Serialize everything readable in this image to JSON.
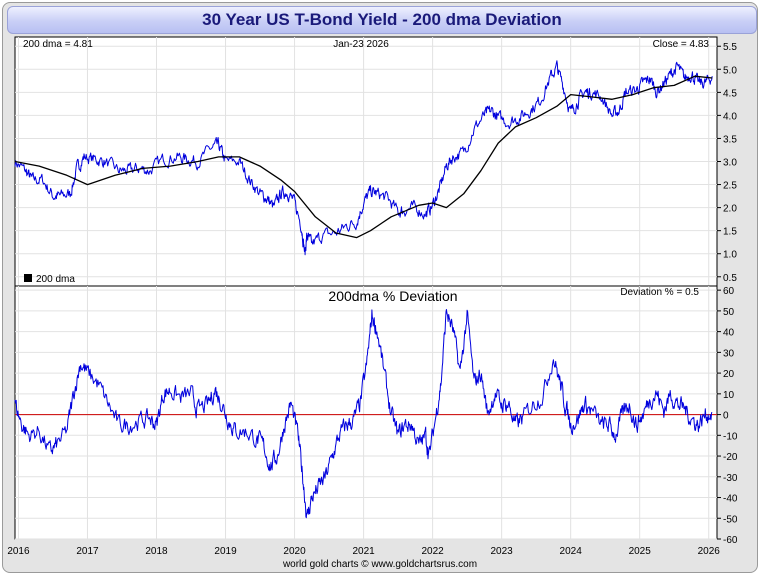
{
  "chart_data": [
    {
      "type": "line",
      "title": "30 Year US T-Bond Yield - 200 dma Deviation",
      "panel": "top",
      "annotations": {
        "left": "200 dma =   4.81",
        "center": "Jan-23  2026",
        "right": "Close = 4.83"
      },
      "legend": "200 dma",
      "ylim": [
        0.3,
        5.7
      ],
      "yticks": [
        "5.5",
        "5.0",
        "4.5",
        "4.0",
        "3.5",
        "3.0",
        "2.5",
        "2.0",
        "1.5",
        "1.0",
        "0.5"
      ],
      "xlim": [
        2015.95,
        2026.12
      ],
      "series": [
        {
          "name": "30 Year US T-Bond Yield",
          "color": "#0000dd",
          "x": [
            2015.95,
            2016.1,
            2016.2,
            2016.35,
            2016.5,
            2016.6,
            2016.75,
            2016.85,
            2016.95,
            2017.1,
            2017.25,
            2017.45,
            2017.6,
            2017.75,
            2017.9,
            2018.1,
            2018.3,
            2018.45,
            2018.6,
            2018.8,
            2018.9,
            2019.0,
            2019.2,
            2019.35,
            2019.5,
            2019.6,
            2019.7,
            2019.8,
            2019.9,
            2020.0,
            2020.1,
            2020.15,
            2020.18,
            2020.25,
            2020.4,
            2020.6,
            2020.75,
            2020.9,
            2021.0,
            2021.1,
            2021.2,
            2021.35,
            2021.5,
            2021.6,
            2021.75,
            2021.9,
            2022.0,
            2022.1,
            2022.2,
            2022.3,
            2022.45,
            2022.6,
            2022.75,
            2022.85,
            2022.95,
            2023.1,
            2023.25,
            2023.4,
            2023.55,
            2023.7,
            2023.8,
            2023.9,
            2024.0,
            2024.1,
            2024.2,
            2024.3,
            2024.45,
            2024.6,
            2024.7,
            2024.8,
            2024.95,
            2025.05,
            2025.15,
            2025.25,
            2025.35,
            2025.45,
            2025.55,
            2025.65,
            2025.75,
            2025.85,
            2025.95,
            2026.05
          ],
          "y": [
            3.0,
            2.8,
            2.6,
            2.6,
            2.25,
            2.25,
            2.3,
            2.85,
            3.1,
            3.05,
            3.0,
            2.8,
            2.8,
            2.85,
            2.8,
            3.05,
            3.1,
            3.05,
            3.0,
            3.3,
            3.35,
            3.0,
            3.0,
            2.6,
            2.3,
            2.2,
            2.0,
            2.3,
            2.35,
            2.1,
            1.6,
            1.0,
            1.4,
            1.2,
            1.4,
            1.45,
            1.6,
            1.7,
            2.1,
            2.35,
            2.3,
            2.2,
            1.9,
            1.95,
            2.0,
            1.85,
            2.05,
            2.4,
            2.9,
            3.1,
            3.2,
            3.7,
            4.0,
            4.1,
            3.95,
            3.85,
            3.95,
            4.1,
            4.3,
            4.8,
            5.05,
            4.6,
            4.05,
            4.3,
            4.5,
            4.5,
            4.4,
            4.0,
            4.1,
            4.5,
            4.55,
            4.7,
            4.8,
            4.5,
            4.7,
            4.9,
            5.05,
            4.8,
            4.9,
            4.7,
            4.7,
            4.85
          ]
        },
        {
          "name": "200 dma",
          "color": "#000000",
          "x": [
            2015.95,
            2016.3,
            2016.7,
            2017.0,
            2017.4,
            2017.8,
            2018.2,
            2018.6,
            2018.9,
            2019.2,
            2019.5,
            2019.8,
            2020.0,
            2020.3,
            2020.6,
            2020.9,
            2021.1,
            2021.4,
            2021.8,
            2022.0,
            2022.2,
            2022.45,
            2022.7,
            2022.95,
            2023.2,
            2023.5,
            2023.8,
            2024.0,
            2024.3,
            2024.6,
            2024.9,
            2025.2,
            2025.5,
            2025.8,
            2026.05
          ],
          "y": [
            3.0,
            2.9,
            2.7,
            2.5,
            2.7,
            2.85,
            2.9,
            3.0,
            3.1,
            3.1,
            2.9,
            2.6,
            2.35,
            1.8,
            1.45,
            1.35,
            1.5,
            1.8,
            2.05,
            2.1,
            2.0,
            2.3,
            2.8,
            3.4,
            3.75,
            3.95,
            4.2,
            4.45,
            4.4,
            4.35,
            4.45,
            4.6,
            4.65,
            4.85,
            4.81
          ]
        }
      ]
    },
    {
      "type": "line",
      "panel": "bottom",
      "title": "200dma  %  Deviation",
      "annotation": "Deviation % = 0.5",
      "ylim": [
        -60,
        62
      ],
      "yticks": [
        "60",
        "50",
        "40",
        "30",
        "20",
        "10",
        "0",
        "-10",
        "-20",
        "-30",
        "-40",
        "-50",
        "-60"
      ],
      "xticks": [
        "2016",
        "2017",
        "2018",
        "2019",
        "2020",
        "2021",
        "2022",
        "2023",
        "2024",
        "2025",
        "2026"
      ],
      "xlim": [
        2015.95,
        2026.12
      ],
      "zero_line_color": "#cc0000",
      "series": [
        {
          "name": "200dma % Deviation",
          "color": "#0000dd",
          "x": [
            2015.95,
            2016.05,
            2016.15,
            2016.3,
            2016.45,
            2016.55,
            2016.7,
            2016.8,
            2016.9,
            2017.0,
            2017.15,
            2017.3,
            2017.45,
            2017.6,
            2017.75,
            2017.9,
            2018.0,
            2018.1,
            2018.2,
            2018.35,
            2018.5,
            2018.6,
            2018.75,
            2018.85,
            2018.95,
            2019.05,
            2019.15,
            2019.3,
            2019.45,
            2019.55,
            2019.65,
            2019.75,
            2019.85,
            2019.95,
            2020.05,
            2020.12,
            2020.18,
            2020.25,
            2020.35,
            2020.45,
            2020.55,
            2020.65,
            2020.75,
            2020.85,
            2020.95,
            2021.05,
            2021.12,
            2021.2,
            2021.3,
            2021.4,
            2021.5,
            2021.6,
            2021.7,
            2021.8,
            2021.9,
            2021.95,
            2022.05,
            2022.12,
            2022.2,
            2022.3,
            2022.4,
            2022.5,
            2022.6,
            2022.7,
            2022.8,
            2022.9,
            2023.0,
            2023.1,
            2023.2,
            2023.3,
            2023.45,
            2023.6,
            2023.75,
            2023.85,
            2023.92,
            2024.0,
            2024.1,
            2024.2,
            2024.3,
            2024.45,
            2024.55,
            2024.65,
            2024.75,
            2024.85,
            2024.95,
            2025.05,
            2025.15,
            2025.25,
            2025.35,
            2025.45,
            2025.55,
            2025.65,
            2025.75,
            2025.85,
            2025.95,
            2026.05
          ],
          "y": [
            5,
            -5,
            -10,
            -8,
            -18,
            -15,
            -8,
            10,
            25,
            20,
            15,
            5,
            -5,
            -5,
            -3,
            -2,
            -5,
            10,
            12,
            8,
            10,
            2,
            5,
            12,
            5,
            -3,
            -8,
            -8,
            -12,
            -15,
            -25,
            -20,
            -5,
            5,
            -10,
            -30,
            -50,
            -40,
            -35,
            -30,
            -20,
            -10,
            -5,
            -3,
            5,
            25,
            48,
            40,
            20,
            0,
            -10,
            -5,
            -5,
            -15,
            -10,
            -20,
            0,
            15,
            50,
            40,
            20,
            48,
            15,
            20,
            0,
            10,
            5,
            5,
            -5,
            -2,
            5,
            10,
            28,
            15,
            5,
            -5,
            -2,
            5,
            2,
            -5,
            -5,
            -10,
            0,
            5,
            -5,
            0,
            8,
            10,
            2,
            10,
            5,
            3,
            -2,
            -5,
            0,
            1
          ]
        }
      ]
    }
  ],
  "footer": {
    "credit": "world gold charts © www.goldchartsrus.com"
  }
}
